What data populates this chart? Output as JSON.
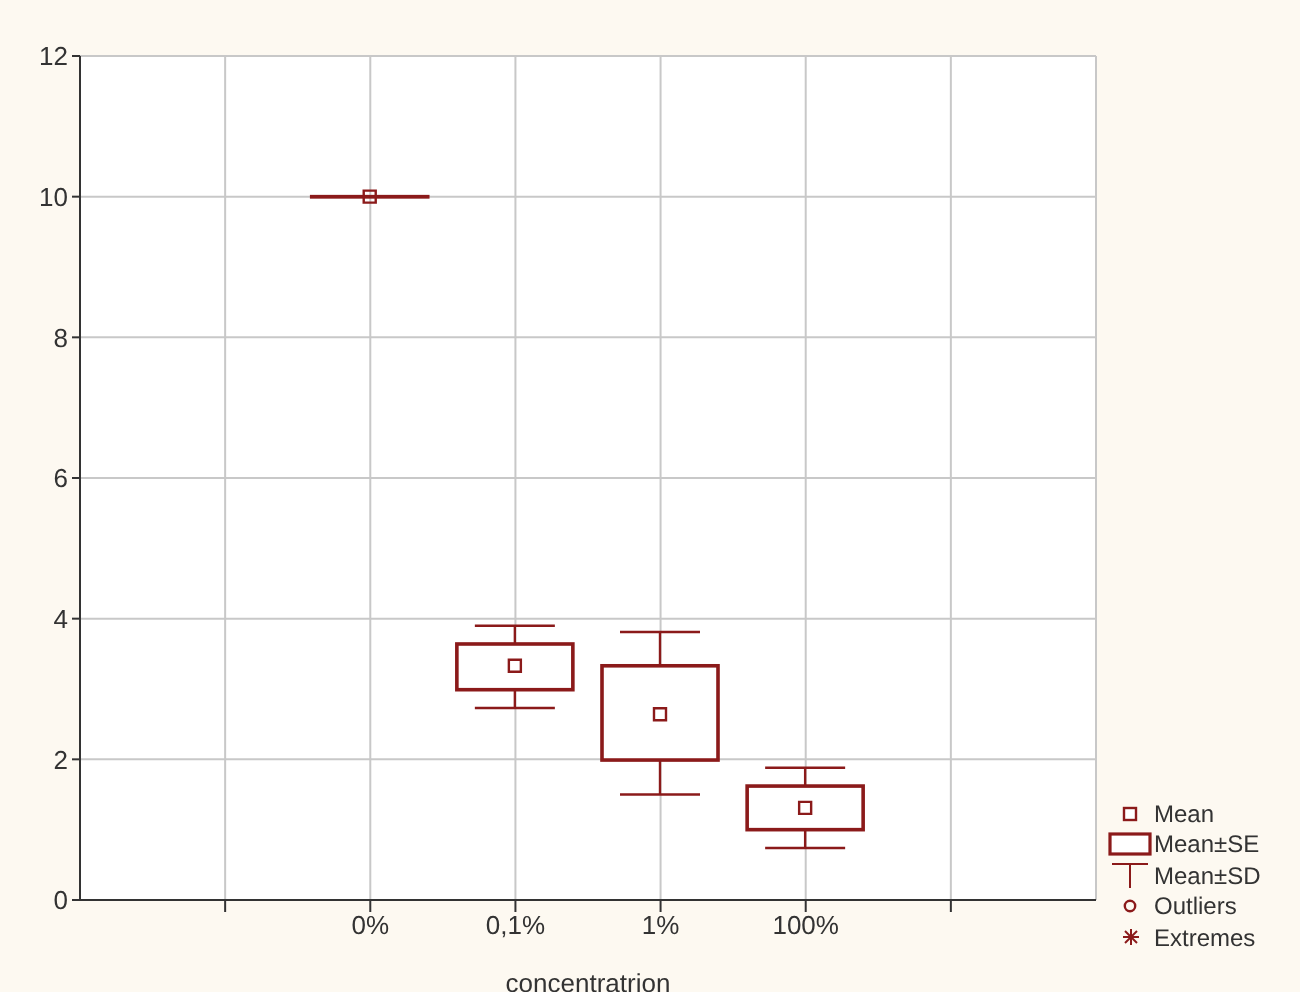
{
  "chart_data": {
    "type": "box",
    "xlabel": "concentratrion",
    "categories": [
      null,
      "0%",
      "0,1%",
      "1%",
      "100%",
      null
    ],
    "series": [
      {
        "color": "#8b1a1a",
        "boxes": [
          null,
          {
            "low": 10,
            "q1": 10,
            "median": 10,
            "q3": 10,
            "high": 10,
            "mean": 10
          },
          {
            "low": 2.73,
            "q1": 2.99,
            "median": 3.33,
            "q3": 3.64,
            "high": 3.9
          },
          {
            "low": 1.5,
            "q1": 1.99,
            "median": 2.64,
            "q3": 3.33,
            "high": 3.81
          },
          {
            "low": 0.74,
            "q1": 1.0,
            "median": 1.31,
            "q3": 1.62,
            "high": 1.88
          },
          null
        ]
      }
    ],
    "ylim": [
      0,
      12
    ],
    "yticks": [
      0,
      2,
      4,
      6,
      8,
      10,
      12
    ],
    "grid": true,
    "marker": "square",
    "annotations": [
      "Mean",
      "Mean±SE",
      "Mean±SD",
      "Outliers",
      "Extremes"
    ]
  }
}
